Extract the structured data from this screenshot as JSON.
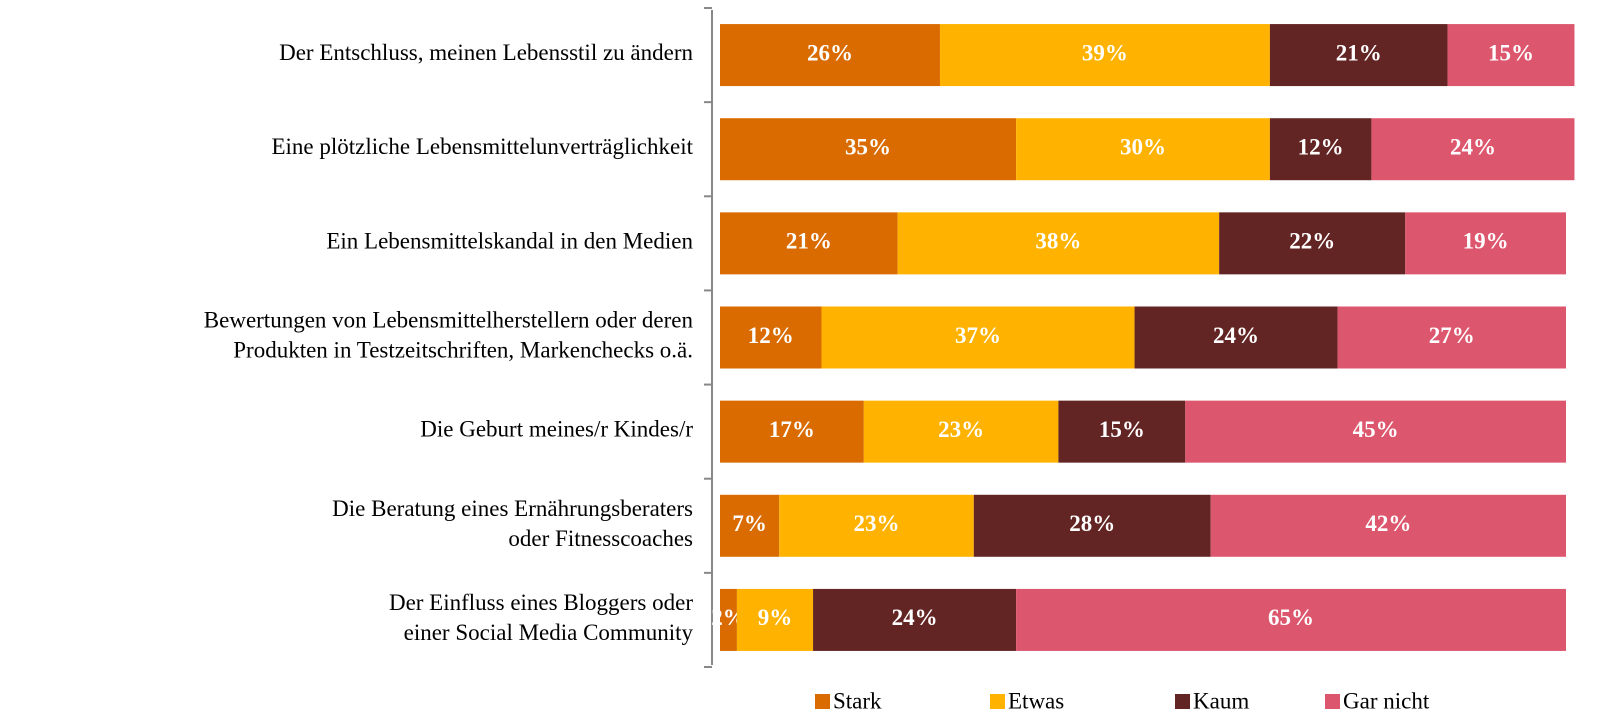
{
  "chart_data": {
    "type": "stacked_barh",
    "categories": [
      [
        "Der Entschluss, meinen Lebensstil zu ändern"
      ],
      [
        "Eine plötzliche Lebensmittelunverträglichkeit"
      ],
      [
        "Ein Lebensmittelskandal in den Medien"
      ],
      [
        "Bewertungen von Lebensmittelherstellern oder deren",
        "Produkten in Testzeitschriften, Markenchecks o.ä."
      ],
      [
        "Die Geburt meines/r Kindes/r"
      ],
      [
        "Die Beratung eines Ernährungsberaters",
        "oder Fitnesscoaches"
      ],
      [
        "Der Einfluss eines Bloggers oder",
        "einer Social Media Community"
      ]
    ],
    "series": [
      {
        "name": "Stark",
        "color": "#d96b00",
        "values": [
          26,
          35,
          21,
          12,
          17,
          7,
          2
        ],
        "value_labels": [
          "26%",
          "35%",
          "21%",
          "12%",
          "17%",
          "7%",
          "2%"
        ]
      },
      {
        "name": "Etwas",
        "color": "#ffb300",
        "values": [
          39,
          30,
          38,
          37,
          23,
          23,
          9
        ],
        "value_labels": [
          "39%",
          "30%",
          "38%",
          "37%",
          "23%",
          "23%",
          "9%"
        ]
      },
      {
        "name": "Kaum",
        "color": "#632523",
        "values": [
          21,
          12,
          22,
          24,
          15,
          28,
          24
        ],
        "value_labels": [
          "21%",
          "12%",
          "22%",
          "24%",
          "15%",
          "28%",
          "24%"
        ]
      },
      {
        "name": "Gar nicht",
        "color": "#dc566d",
        "values": [
          15,
          24,
          19,
          27,
          45,
          42,
          65
        ],
        "value_labels": [
          "15%",
          "24%",
          "19%",
          "27%",
          "45%",
          "42%",
          "65%"
        ]
      }
    ],
    "xlim": [
      0,
      100
    ],
    "legend": "bottom"
  }
}
